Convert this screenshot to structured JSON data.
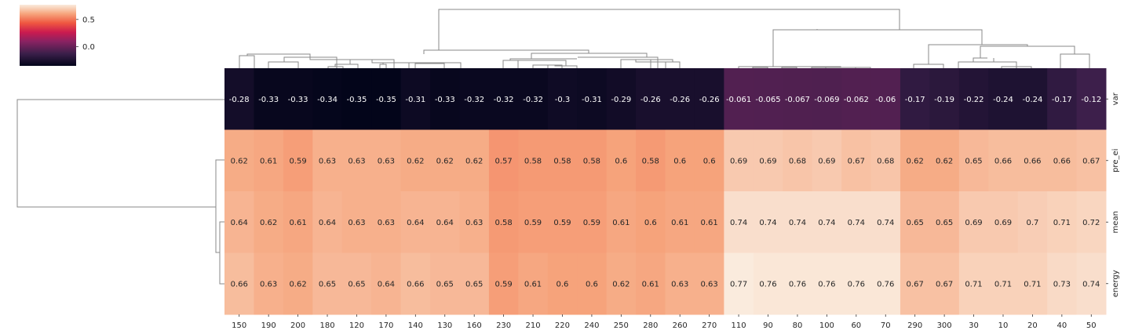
{
  "chart_data": {
    "type": "heatmap",
    "title": "",
    "xlabel": "",
    "ylabel": "",
    "columns": [
      "150",
      "190",
      "200",
      "180",
      "120",
      "170",
      "140",
      "130",
      "160",
      "230",
      "210",
      "220",
      "240",
      "250",
      "280",
      "260",
      "270",
      "110",
      "90",
      "80",
      "100",
      "60",
      "70",
      "290",
      "300",
      "30",
      "10",
      "20",
      "40",
      "50"
    ],
    "rows": [
      "var",
      "pre_ei",
      "mean",
      "energy"
    ],
    "values": [
      [
        -0.28,
        -0.33,
        -0.33,
        -0.34,
        -0.35,
        -0.35,
        -0.31,
        -0.33,
        -0.32,
        -0.32,
        -0.32,
        -0.3,
        -0.31,
        -0.29,
        -0.26,
        -0.26,
        -0.26,
        -0.061,
        -0.065,
        -0.067,
        -0.069,
        -0.062,
        -0.06,
        -0.17,
        -0.19,
        -0.22,
        -0.24,
        -0.24,
        -0.17,
        -0.12
      ],
      [
        0.62,
        0.61,
        0.59,
        0.63,
        0.63,
        0.63,
        0.62,
        0.62,
        0.62,
        0.57,
        0.58,
        0.58,
        0.58,
        0.6,
        0.58,
        0.6,
        0.6,
        0.69,
        0.69,
        0.68,
        0.69,
        0.67,
        0.68,
        0.62,
        0.62,
        0.65,
        0.66,
        0.66,
        0.66,
        0.67
      ],
      [
        0.64,
        0.62,
        0.61,
        0.64,
        0.63,
        0.63,
        0.64,
        0.64,
        0.63,
        0.58,
        0.59,
        0.59,
        0.59,
        0.61,
        0.6,
        0.61,
        0.61,
        0.74,
        0.74,
        0.74,
        0.74,
        0.74,
        0.74,
        0.65,
        0.65,
        0.69,
        0.69,
        0.7,
        0.71,
        0.72
      ],
      [
        0.66,
        0.63,
        0.62,
        0.65,
        0.65,
        0.64,
        0.66,
        0.65,
        0.65,
        0.59,
        0.61,
        0.6,
        0.6,
        0.62,
        0.61,
        0.63,
        0.63,
        0.77,
        0.76,
        0.76,
        0.76,
        0.76,
        0.76,
        0.67,
        0.67,
        0.71,
        0.71,
        0.71,
        0.73,
        0.74
      ]
    ],
    "value_labels": [
      [
        "-0.28",
        "-0.33",
        "-0.33",
        "-0.34",
        "-0.35",
        "-0.35",
        "-0.31",
        "-0.33",
        "-0.32",
        "-0.32",
        "-0.32",
        "-0.3",
        "-0.31",
        "-0.29",
        "-0.26",
        "-0.26",
        "-0.26",
        "-0.061",
        "-0.065",
        "-0.067",
        "-0.069",
        "-0.062",
        "-0.06",
        "-0.17",
        "-0.19",
        "-0.22",
        "-0.24",
        "-0.24",
        "-0.17",
        "-0.12"
      ],
      [
        "0.62",
        "0.61",
        "0.59",
        "0.63",
        "0.63",
        "0.63",
        "0.62",
        "0.62",
        "0.62",
        "0.57",
        "0.58",
        "0.58",
        "0.58",
        "0.6",
        "0.58",
        "0.6",
        "0.6",
        "0.69",
        "0.69",
        "0.68",
        "0.69",
        "0.67",
        "0.68",
        "0.62",
        "0.62",
        "0.65",
        "0.66",
        "0.66",
        "0.66",
        "0.67"
      ],
      [
        "0.64",
        "0.62",
        "0.61",
        "0.64",
        "0.63",
        "0.63",
        "0.64",
        "0.64",
        "0.63",
        "0.58",
        "0.59",
        "0.59",
        "0.59",
        "0.61",
        "0.6",
        "0.61",
        "0.61",
        "0.74",
        "0.74",
        "0.74",
        "0.74",
        "0.74",
        "0.74",
        "0.65",
        "0.65",
        "0.69",
        "0.69",
        "0.7",
        "0.71",
        "0.72"
      ],
      [
        "0.66",
        "0.63",
        "0.62",
        "0.65",
        "0.65",
        "0.64",
        "0.66",
        "0.65",
        "0.65",
        "0.59",
        "0.61",
        "0.6",
        "0.6",
        "0.62",
        "0.61",
        "0.63",
        "0.63",
        "0.77",
        "0.76",
        "0.76",
        "0.76",
        "0.76",
        "0.76",
        "0.67",
        "0.67",
        "0.71",
        "0.71",
        "0.71",
        "0.73",
        "0.74"
      ]
    ],
    "colormap": "rocket",
    "colorbar": {
      "range": [
        -0.35,
        0.77
      ],
      "ticks": [
        0.0,
        0.5
      ],
      "tick_labels": [
        "0.0",
        "0.5"
      ],
      "placement": "top-left"
    },
    "dendrograms": [
      "top (columns)",
      "left (rows)"
    ]
  }
}
